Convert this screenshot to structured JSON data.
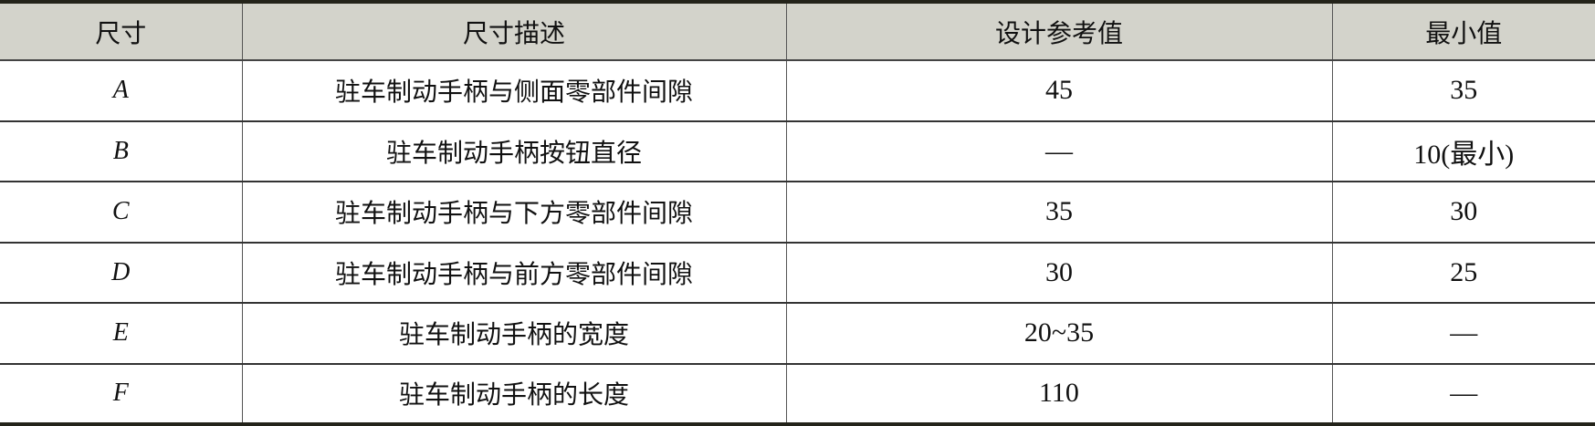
{
  "table": {
    "headers": [
      "尺寸",
      "尺寸描述",
      "设计参考值",
      "最小值"
    ],
    "rows": [
      {
        "dim": "A",
        "desc": "驻车制动手柄与侧面零部件间隙",
        "ref": "45",
        "min": "35"
      },
      {
        "dim": "B",
        "desc": "驻车制动手柄按钮直径",
        "ref": "—",
        "min": "10(最小)"
      },
      {
        "dim": "C",
        "desc": "驻车制动手柄与下方零部件间隙",
        "ref": "35",
        "min": "30"
      },
      {
        "dim": "D",
        "desc": "驻车制动手柄与前方零部件间隙",
        "ref": "30",
        "min": "25"
      },
      {
        "dim": "E",
        "desc": "驻车制动手柄的宽度",
        "ref": "20~35",
        "min": "—"
      },
      {
        "dim": "F",
        "desc": "驻车制动手柄的长度",
        "ref": "110",
        "min": "—"
      }
    ]
  },
  "colors": {
    "header_bg": "#d3d3cb",
    "rule": "#23231a"
  }
}
